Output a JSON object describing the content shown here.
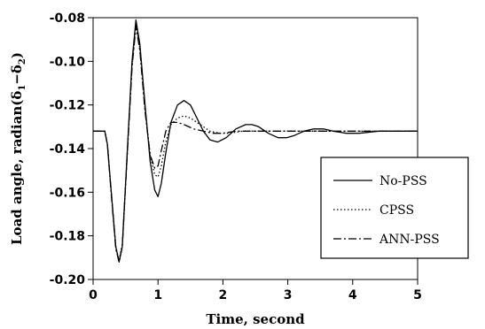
{
  "chart_data": {
    "type": "line",
    "title": "",
    "xlabel": "Time, second",
    "ylabel": "Load angle, radian( δ1−δ2)",
    "ylabel_main": "Load angle, radian(",
    "ylabel_d1": "δ",
    "ylabel_s1": "1",
    "ylabel_minus": "−",
    "ylabel_d2": "δ",
    "ylabel_s2": "2",
    "ylabel_close": ")",
    "xlim": [
      0,
      5
    ],
    "ylim": [
      -0.2,
      -0.08
    ],
    "xticks": [
      0,
      1,
      2,
      3,
      4,
      5
    ],
    "xtick_labels": [
      "0",
      "1",
      "2",
      "3",
      "4",
      "5"
    ],
    "yticks": [
      -0.2,
      -0.18,
      -0.16,
      -0.14,
      -0.12,
      -0.1,
      -0.08
    ],
    "ytick_labels": [
      "-0.20",
      "-0.18",
      "-0.16",
      "-0.14",
      "-0.12",
      "-0.10",
      "-0.08"
    ],
    "grid": false,
    "legend_position": "lower-right",
    "series": [
      {
        "name": "No-PSS",
        "style": "solid",
        "color": "#000000",
        "x": [
          0,
          0.18,
          0.22,
          0.28,
          0.35,
          0.4,
          0.45,
          0.52,
          0.6,
          0.66,
          0.72,
          0.8,
          0.88,
          0.95,
          1.0,
          1.05,
          1.12,
          1.2,
          1.3,
          1.4,
          1.5,
          1.6,
          1.7,
          1.8,
          1.92,
          2.05,
          2.2,
          2.35,
          2.45,
          2.55,
          2.7,
          2.85,
          2.98,
          3.1,
          3.25,
          3.4,
          3.55,
          3.7,
          3.9,
          4.1,
          4.4,
          4.7,
          5.0
        ],
        "y": [
          -0.132,
          -0.132,
          -0.138,
          -0.16,
          -0.185,
          -0.192,
          -0.185,
          -0.145,
          -0.1,
          -0.081,
          -0.092,
          -0.12,
          -0.146,
          -0.159,
          -0.162,
          -0.156,
          -0.142,
          -0.128,
          -0.12,
          -0.118,
          -0.12,
          -0.126,
          -0.132,
          -0.136,
          -0.137,
          -0.135,
          -0.131,
          -0.129,
          -0.129,
          -0.13,
          -0.133,
          -0.135,
          -0.135,
          -0.134,
          -0.132,
          -0.131,
          -0.131,
          -0.132,
          -0.133,
          -0.133,
          -0.132,
          -0.132,
          -0.132
        ]
      },
      {
        "name": "CPSS",
        "style": "dotted",
        "color": "#000000",
        "x": [
          0,
          0.18,
          0.22,
          0.28,
          0.35,
          0.4,
          0.45,
          0.52,
          0.6,
          0.66,
          0.72,
          0.8,
          0.88,
          0.95,
          1.0,
          1.05,
          1.12,
          1.2,
          1.3,
          1.4,
          1.5,
          1.65,
          1.8,
          1.95,
          2.1,
          2.3,
          2.5,
          2.8,
          3.1,
          3.4,
          3.8,
          4.2,
          4.6,
          5.0
        ],
        "y": [
          -0.132,
          -0.132,
          -0.138,
          -0.16,
          -0.185,
          -0.191,
          -0.184,
          -0.145,
          -0.102,
          -0.083,
          -0.094,
          -0.122,
          -0.143,
          -0.152,
          -0.153,
          -0.148,
          -0.137,
          -0.129,
          -0.126,
          -0.125,
          -0.126,
          -0.129,
          -0.132,
          -0.133,
          -0.133,
          -0.132,
          -0.132,
          -0.132,
          -0.132,
          -0.132,
          -0.132,
          -0.132,
          -0.132,
          -0.132
        ]
      },
      {
        "name": "ANN-PSS",
        "style": "dashdot",
        "color": "#000000",
        "x": [
          0,
          0.18,
          0.22,
          0.28,
          0.35,
          0.4,
          0.45,
          0.52,
          0.6,
          0.66,
          0.72,
          0.8,
          0.88,
          0.95,
          1.0,
          1.05,
          1.12,
          1.2,
          1.3,
          1.4,
          1.55,
          1.7,
          1.85,
          2.0,
          2.2,
          2.5,
          2.8,
          3.2,
          3.6,
          4.0,
          4.5,
          5.0
        ],
        "y": [
          -0.132,
          -0.132,
          -0.138,
          -0.161,
          -0.186,
          -0.192,
          -0.185,
          -0.146,
          -0.103,
          -0.084,
          -0.095,
          -0.123,
          -0.143,
          -0.149,
          -0.148,
          -0.141,
          -0.132,
          -0.128,
          -0.128,
          -0.129,
          -0.131,
          -0.132,
          -0.133,
          -0.133,
          -0.132,
          -0.132,
          -0.132,
          -0.132,
          -0.132,
          -0.132,
          -0.132,
          -0.132
        ]
      }
    ]
  }
}
